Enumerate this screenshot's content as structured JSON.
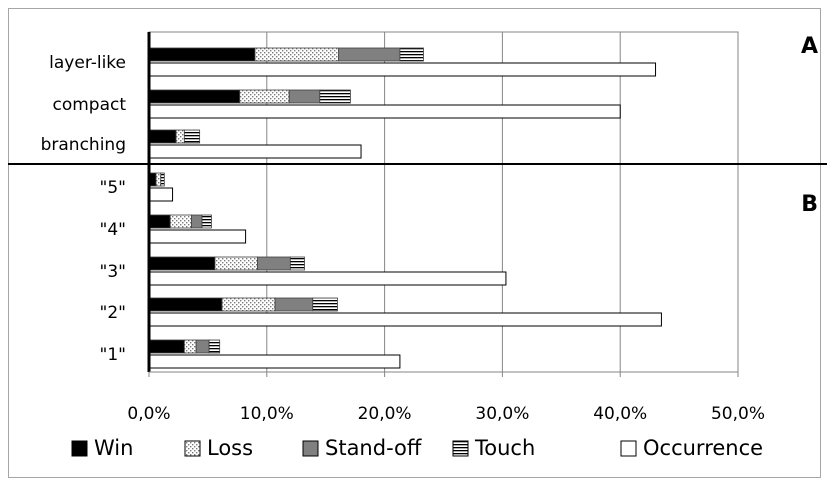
{
  "chart_data": {
    "type": "bar",
    "orientation": "horizontal",
    "stacked": true,
    "categories_A": [
      "layer-like",
      "compact",
      "branching"
    ],
    "categories_B": [
      "\"5\"",
      "\"4\"",
      "\"3\"",
      "\"2\"",
      "\"1\""
    ],
    "panel_labels": [
      "A",
      "B"
    ],
    "xlim": [
      0,
      50
    ],
    "x_ticks": [
      0,
      10,
      20,
      30,
      40,
      50
    ],
    "x_tick_labels": [
      "0,0%",
      "10,0%",
      "20,0%",
      "30,0%",
      "40,0%",
      "50,0%"
    ],
    "grid": "vertical",
    "legend_position": "bottom",
    "legend": [
      "Win",
      "Loss",
      "Stand-off",
      "Touch",
      "Occurrence"
    ],
    "series": [
      {
        "name": "Win",
        "color": "#000000",
        "A": [
          9.0,
          7.7,
          2.3
        ],
        "B": [
          0.6,
          1.8,
          5.6,
          6.2,
          3.0
        ]
      },
      {
        "name": "Loss",
        "color": "#d9d9d9",
        "A": [
          7.1,
          4.2,
          0.7
        ],
        "B": [
          0.4,
          1.8,
          3.6,
          4.5,
          1.0
        ]
      },
      {
        "name": "Stand-off",
        "color": "#808080",
        "A": [
          5.2,
          2.6,
          0.0
        ],
        "B": [
          0.0,
          0.9,
          2.8,
          3.2,
          1.1
        ]
      },
      {
        "name": "Touch",
        "color": "#ffffff",
        "A": [
          2.0,
          2.6,
          1.3
        ],
        "B": [
          0.3,
          0.8,
          1.2,
          2.1,
          0.9
        ]
      }
    ],
    "occurrence": {
      "name": "Occurrence",
      "color": "#ffffff",
      "A": [
        43.0,
        40.0,
        18.0
      ],
      "B": [
        2.0,
        8.2,
        30.3,
        43.5,
        21.3
      ]
    }
  }
}
